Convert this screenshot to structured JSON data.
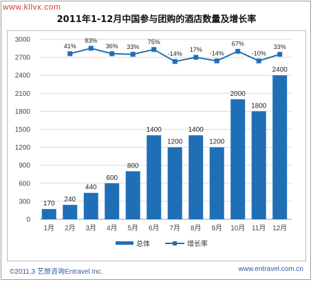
{
  "watermark": "www.kllvx.com",
  "footer": {
    "copyright": "©2011.3 艺旅咨询Entravel Inc.",
    "website": "www.entravel.com.cn"
  },
  "colors": {
    "bar": "#1f6fb7",
    "line": "#1f6fb7",
    "grid": "#d9d9d9",
    "axis_text": "#444444"
  },
  "chart_data": {
    "type": "bar",
    "title": "2011年1-12月中国参与团购的酒店数量及增长率",
    "categories": [
      "1月",
      "2月",
      "3月",
      "4月",
      "5月",
      "6月",
      "7月",
      "8月",
      "9月",
      "10月",
      "11月",
      "12月"
    ],
    "series": [
      {
        "name": "总体",
        "type": "bar",
        "values": [
          170,
          240,
          440,
          600,
          800,
          1400,
          1200,
          1400,
          1200,
          2000,
          1800,
          2400
        ],
        "labels": [
          "170",
          "240",
          "440",
          "600",
          "800",
          "1400",
          "1200",
          "1400",
          "1200",
          "2000",
          "1800",
          "2400"
        ]
      },
      {
        "name": "增长率",
        "type": "line",
        "marker": "square",
        "values": [
          null,
          41,
          83,
          36,
          33,
          75,
          -14,
          17,
          -14,
          67,
          -10,
          33
        ],
        "labels": [
          "",
          "41%",
          "83%",
          "36%",
          "33%",
          "75%",
          "-14%",
          "17%",
          "-14%",
          "67%",
          "-10%",
          "33%"
        ],
        "display_positions": [
          null,
          2760,
          2850,
          2760,
          2750,
          2830,
          2630,
          2700,
          2640,
          2800,
          2640,
          2750
        ]
      }
    ],
    "yticks": [
      0,
      300,
      600,
      900,
      1200,
      1500,
      1800,
      2100,
      2400,
      2700,
      3000
    ],
    "ylim": [
      0,
      3000
    ],
    "grid": true,
    "legend": {
      "position": "bottom",
      "entries": [
        "总体",
        "增长率"
      ]
    }
  }
}
